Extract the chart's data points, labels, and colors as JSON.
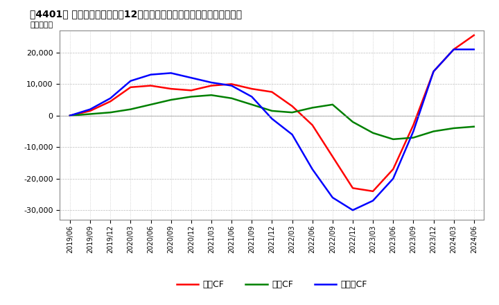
{
  "title": "［4401］ キャッシュフローの12か月移動合計の対前年同期増減額の推移",
  "ylabel": "（百万円）",
  "ylim": [
    -33000,
    27000
  ],
  "yticks": [
    -30000,
    -20000,
    -10000,
    0,
    10000,
    20000
  ],
  "legend": [
    "営業CF",
    "投資CF",
    "フリーCF"
  ],
  "colors": {
    "営業CF": "#ff0000",
    "投資CF": "#008000",
    "フリーCF": "#0000ff"
  },
  "x_labels": [
    "2019/06",
    "2019/09",
    "2019/12",
    "2020/03",
    "2020/06",
    "2020/09",
    "2020/12",
    "2021/03",
    "2021/06",
    "2021/09",
    "2021/12",
    "2022/03",
    "2022/06",
    "2022/09",
    "2022/12",
    "2023/03",
    "2023/06",
    "2023/09",
    "2023/12",
    "2024/03",
    "2024/06"
  ],
  "営業CF": [
    0,
    1500,
    4500,
    9000,
    9500,
    8500,
    8000,
    9500,
    10000,
    8500,
    7500,
    3000,
    -3000,
    -13000,
    -23000,
    -24000,
    -17000,
    -3000,
    14000,
    21000,
    25500
  ],
  "投資CF": [
    0,
    500,
    1000,
    2000,
    3500,
    5000,
    6000,
    6500,
    5500,
    3500,
    1500,
    1000,
    2500,
    3500,
    -2000,
    -5500,
    -7500,
    -7000,
    -5000,
    -4000,
    -3500
  ],
  "フリーCF": [
    0,
    2000,
    5500,
    11000,
    13000,
    13500,
    12000,
    10500,
    9500,
    6000,
    -1000,
    -6000,
    -17000,
    -26000,
    -30000,
    -27000,
    -20000,
    -5000,
    14000,
    21000,
    21000
  ]
}
